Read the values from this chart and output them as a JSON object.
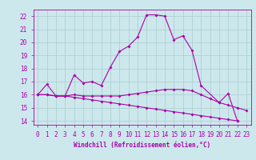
{
  "xlabel": "Windchill (Refroidissement éolien,°C)",
  "xlim": [
    -0.5,
    23.5
  ],
  "ylim": [
    13.7,
    22.5
  ],
  "yticks": [
    14,
    15,
    16,
    17,
    18,
    19,
    20,
    21,
    22
  ],
  "xticks": [
    0,
    1,
    2,
    3,
    4,
    5,
    6,
    7,
    8,
    9,
    10,
    11,
    12,
    13,
    14,
    15,
    16,
    17,
    18,
    19,
    20,
    21,
    22,
    23
  ],
  "background_color": "#cce8ec",
  "grid_color": "#aacccc",
  "line_color": "#aa00aa",
  "series1_x": [
    0,
    1,
    2,
    3,
    4,
    5,
    6,
    7,
    8,
    9,
    10,
    11,
    12,
    13,
    14,
    15,
    16,
    17,
    18,
    20,
    21,
    22
  ],
  "series1_y": [
    16.0,
    16.8,
    15.9,
    15.9,
    17.5,
    16.9,
    17.0,
    16.7,
    18.1,
    19.3,
    19.7,
    20.4,
    22.1,
    22.1,
    22.0,
    20.2,
    20.5,
    19.4,
    16.7,
    15.4,
    16.1,
    14.0
  ],
  "series2_x": [
    0,
    1,
    2,
    3,
    4,
    5,
    6,
    7,
    8,
    9,
    10,
    11,
    12,
    13,
    14,
    15,
    16,
    17,
    18,
    19,
    20,
    21,
    22,
    23
  ],
  "series2_y": [
    16.0,
    16.0,
    15.9,
    15.9,
    16.0,
    15.9,
    15.9,
    15.9,
    15.9,
    15.9,
    16.0,
    16.1,
    16.2,
    16.3,
    16.4,
    16.4,
    16.4,
    16.3,
    16.0,
    15.7,
    15.4,
    15.2,
    15.0,
    14.8
  ],
  "series3_x": [
    0,
    1,
    2,
    3,
    4,
    5,
    6,
    7,
    8,
    9,
    10,
    11,
    12,
    13,
    14,
    15,
    16,
    17,
    18,
    19,
    20,
    21,
    22
  ],
  "series3_y": [
    16.0,
    16.0,
    15.9,
    15.9,
    15.8,
    15.7,
    15.6,
    15.5,
    15.4,
    15.3,
    15.2,
    15.1,
    15.0,
    14.9,
    14.8,
    14.7,
    14.6,
    14.5,
    14.4,
    14.3,
    14.2,
    14.1,
    14.0
  ]
}
